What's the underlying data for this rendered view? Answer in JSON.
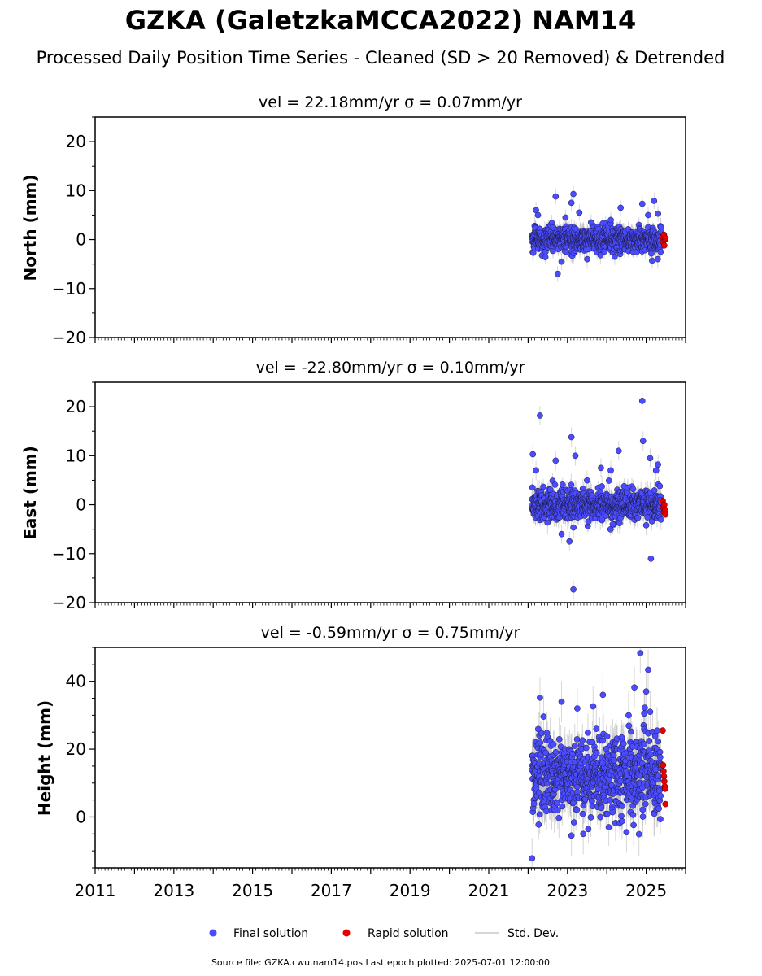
{
  "figure": {
    "title": "GZKA (GaletzkaMCCA2022) NAM14",
    "subtitle": "Processed Daily Position Time Series - Cleaned (SD > 20 Removed) & Detrended",
    "footer": "Source file: GZKA.cwu.nam14.pos  Last epoch plotted: 2025-07-01 12:00:00"
  },
  "legend": {
    "final": "Final solution",
    "rapid": "Rapid solution",
    "std": "Std. Dev.",
    "placement": "bottom-center"
  },
  "colors": {
    "final": "#4b4bff",
    "rapid": "#e60000",
    "std": "#b4b4b4",
    "axis": "#000000"
  },
  "chart_data": [
    {
      "type": "scatter",
      "title": "vel = 22.18mm/yr   σ = 0.07mm/yr",
      "ylabel": "North (mm)",
      "ylim": [
        -20,
        25
      ],
      "yticks": [
        -20,
        -10,
        0,
        10,
        20
      ],
      "yticklabels": [
        "−20",
        "−10",
        "0",
        "10",
        "20"
      ],
      "xlim": [
        2011.0,
        2026.0
      ],
      "show_xticklabels": false,
      "grid": false,
      "final_series": {
        "x_start": 2022.1,
        "x_end": 2025.38,
        "center": 0.0,
        "spread": 1.2,
        "std": 1.5,
        "outliers": [
          [
            2022.2,
            6.0
          ],
          [
            2022.25,
            5.0
          ],
          [
            2022.7,
            8.8
          ],
          [
            2022.95,
            4.5
          ],
          [
            2023.15,
            9.3
          ],
          [
            2023.1,
            7.5
          ],
          [
            2023.3,
            5.5
          ],
          [
            2023.6,
            3.5
          ],
          [
            2024.1,
            4.0
          ],
          [
            2024.35,
            6.5
          ],
          [
            2024.9,
            7.3
          ],
          [
            2025.05,
            5.0
          ],
          [
            2025.2,
            7.9
          ],
          [
            2025.3,
            5.3
          ],
          [
            2022.75,
            -7.0
          ],
          [
            2022.85,
            -4.5
          ],
          [
            2023.5,
            -4.0
          ],
          [
            2024.2,
            -3.5
          ],
          [
            2025.15,
            -4.3
          ]
        ]
      },
      "rapid_series": {
        "points": [
          [
            2025.42,
            0.5
          ],
          [
            2025.43,
            -0.5
          ],
          [
            2025.45,
            1.0
          ],
          [
            2025.46,
            -1.2
          ],
          [
            2025.48,
            0.0
          ],
          [
            2025.49,
            0.3
          ]
        ]
      }
    },
    {
      "type": "scatter",
      "title": "vel = -22.80mm/yr   σ = 0.10mm/yr",
      "ylabel": "East (mm)",
      "ylim": [
        -20,
        25
      ],
      "yticks": [
        -20,
        -10,
        0,
        10,
        20
      ],
      "yticklabels": [
        "−20",
        "−10",
        "0",
        "10",
        "20"
      ],
      "xlim": [
        2011.0,
        2026.0
      ],
      "show_xticklabels": false,
      "grid": false,
      "final_series": {
        "x_start": 2022.1,
        "x_end": 2025.38,
        "center": 0.0,
        "spread": 1.5,
        "std": 1.8,
        "outliers": [
          [
            2022.12,
            10.3
          ],
          [
            2022.3,
            18.2
          ],
          [
            2022.2,
            7.0
          ],
          [
            2022.7,
            9.0
          ],
          [
            2023.1,
            13.8
          ],
          [
            2023.2,
            10.0
          ],
          [
            2023.85,
            7.5
          ],
          [
            2024.1,
            7.0
          ],
          [
            2024.3,
            11.0
          ],
          [
            2024.9,
            21.2
          ],
          [
            2024.92,
            13.0
          ],
          [
            2025.1,
            9.5
          ],
          [
            2025.3,
            8.2
          ],
          [
            2025.25,
            7.0
          ],
          [
            2022.85,
            -6.0
          ],
          [
            2023.05,
            -7.5
          ],
          [
            2023.15,
            -17.3
          ],
          [
            2024.15,
            -4.0
          ],
          [
            2025.0,
            -4.2
          ],
          [
            2025.12,
            -11.0
          ]
        ]
      },
      "rapid_series": {
        "points": [
          [
            2025.42,
            0.8
          ],
          [
            2025.43,
            -0.5
          ],
          [
            2025.45,
            -1.5
          ],
          [
            2025.46,
            0.0
          ],
          [
            2025.48,
            -1.0
          ],
          [
            2025.49,
            -2.0
          ]
        ]
      }
    },
    {
      "type": "scatter",
      "title": "vel = -0.59mm/yr   σ = 0.75mm/yr",
      "ylabel": "Height (mm)",
      "ylim": [
        -15,
        50
      ],
      "yticks": [
        0,
        20,
        40
      ],
      "yticklabels": [
        "0",
        "20",
        "40"
      ],
      "xlim": [
        2011.0,
        2026.0
      ],
      "xticks": [
        2011,
        2013,
        2015,
        2017,
        2019,
        2021,
        2023,
        2025
      ],
      "xticklabels": [
        "2011",
        "2013",
        "2015",
        "2017",
        "2019",
        "2021",
        "2023",
        "2025"
      ],
      "show_xticklabels": true,
      "grid": false,
      "final_series": {
        "x_start": 2022.1,
        "x_end": 2025.38,
        "center": 12.5,
        "spread": 6.0,
        "std": 5.5,
        "outliers": [
          [
            2022.1,
            -12.2
          ],
          [
            2022.3,
            35.2
          ],
          [
            2022.85,
            34.0
          ],
          [
            2023.25,
            32.0
          ],
          [
            2023.65,
            32.6
          ],
          [
            2023.9,
            36.0
          ],
          [
            2024.7,
            38.2
          ],
          [
            2024.85,
            48.3
          ],
          [
            2025.05,
            43.4
          ],
          [
            2025.0,
            37.0
          ],
          [
            2025.1,
            31.0
          ],
          [
            2024.95,
            30.5
          ],
          [
            2023.1,
            -5.5
          ],
          [
            2023.4,
            -5.0
          ],
          [
            2024.5,
            -4.5
          ]
        ]
      },
      "rapid_series": {
        "points": [
          [
            2025.42,
            25.5
          ],
          [
            2025.43,
            15.3
          ],
          [
            2025.44,
            13.5
          ],
          [
            2025.45,
            12.0
          ],
          [
            2025.46,
            10.5
          ],
          [
            2025.47,
            9.0
          ],
          [
            2025.48,
            8.3
          ],
          [
            2025.49,
            3.8
          ]
        ]
      }
    }
  ]
}
